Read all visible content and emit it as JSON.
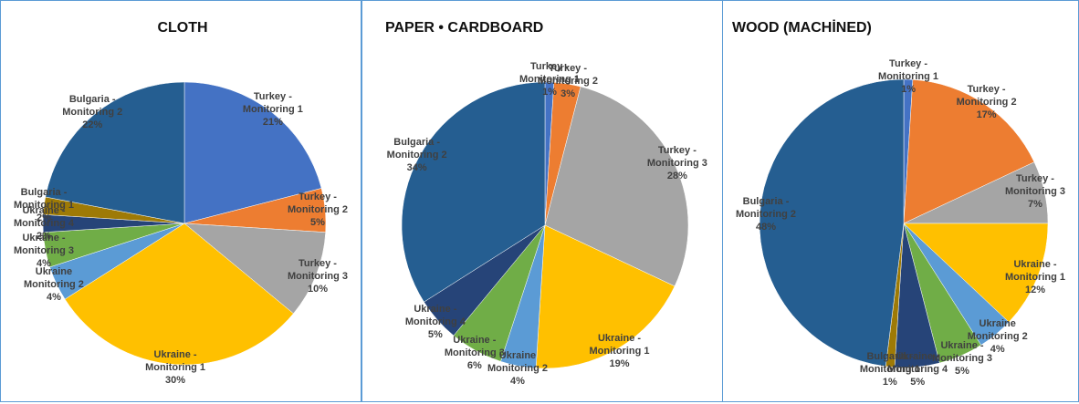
{
  "chart_data": [
    {
      "type": "pie",
      "title": "CLOTH",
      "categories": [
        "Turkey - Monitoring 1",
        "Turkey - Monitoring 2",
        "Turkey - Monitoring 3",
        "Ukraine - Monitoring 1",
        "Ukraine Monitoring 2",
        "Ukraine - Monitoring 3",
        "Ukraine - Monitoring 4",
        "Bulgaria - Monitoring 1",
        "Bulgaria - Monitoring 2"
      ],
      "values": [
        21,
        5,
        10,
        30,
        4,
        4,
        2,
        2,
        22
      ],
      "value_labels": [
        "21%",
        "5%",
        "10%",
        "30%",
        "4%",
        "4%",
        "2%",
        "2%",
        "22%"
      ],
      "colors": [
        "#4472c4",
        "#ed7d31",
        "#a5a5a5",
        "#ffc000",
        "#5b9bd5",
        "#70ad47",
        "#264478",
        "#9e7a06",
        "#255e91"
      ]
    },
    {
      "type": "pie",
      "title": "PAPER • CARDBOARD",
      "categories": [
        "Turkey - Monitoring 1",
        "Turkey - Monitoring 2",
        "Turkey - Monitoring 3",
        "Ukraine - Monitoring 1",
        "Ukraine Monitoring 2",
        "Ukraine - Monitoring 3",
        "Ukraine - Monitoring 4",
        "Bulgaria - Monitoring 2"
      ],
      "values": [
        1,
        3,
        28,
        19,
        4,
        6,
        5,
        34
      ],
      "value_labels": [
        "1%",
        "3%",
        "28%",
        "19%",
        "4%",
        "6%",
        "5%",
        "34%"
      ],
      "colors": [
        "#4472c4",
        "#ed7d31",
        "#a5a5a5",
        "#ffc000",
        "#5b9bd5",
        "#70ad47",
        "#264478",
        "#255e91"
      ]
    },
    {
      "type": "pie",
      "title": "WOOD (MACHİNED)",
      "categories": [
        "Turkey - Monitoring 1",
        "Turkey - Monitoring 2",
        "Turkey - Monitoring 3",
        "Ukraine - Monitoring 1",
        "Ukraine Monitoring 2",
        "Ukraine - Monitoring 3",
        "Ukraine - Monitoring 4",
        "Bulgaria - Monitoring 1",
        "Bulgaria - Monitoring 2"
      ],
      "values": [
        1,
        17,
        7,
        12,
        4,
        5,
        5,
        1,
        48
      ],
      "value_labels": [
        "1%",
        "17%",
        "7%",
        "12%",
        "4%",
        "5%",
        "5%",
        "1%",
        "48%"
      ],
      "colors": [
        "#4472c4",
        "#ed7d31",
        "#a5a5a5",
        "#ffc000",
        "#5b9bd5",
        "#70ad47",
        "#264478",
        "#9e7a06",
        "#255e91"
      ]
    }
  ]
}
